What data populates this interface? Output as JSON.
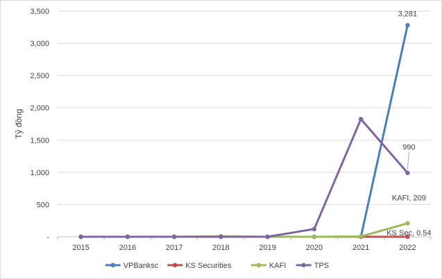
{
  "chart_data": {
    "type": "line",
    "x": [
      "2015",
      "2016",
      "2017",
      "2018",
      "2019",
      "2020",
      "2021",
      "2022"
    ],
    "ylabel": "Tỷ đồng",
    "ylim": [
      0,
      3500
    ],
    "y_ticks": [
      {
        "value": 0,
        "label": "-"
      },
      {
        "value": 500,
        "label": "500"
      },
      {
        "value": 1000,
        "label": "1,000"
      },
      {
        "value": 1500,
        "label": "1,500"
      },
      {
        "value": 2000,
        "label": "2,000"
      },
      {
        "value": 2500,
        "label": "2,500"
      },
      {
        "value": 3000,
        "label": "3,000"
      },
      {
        "value": 3500,
        "label": "3,500"
      }
    ],
    "grid": "horizontal",
    "legend_position": "bottom",
    "series": [
      {
        "name": "VPBanksc",
        "color": "#4a7ebb",
        "values": [
          0,
          0,
          0,
          0,
          0,
          0,
          0,
          3281
        ]
      },
      {
        "name": "KS Securities",
        "color": "#c0504d",
        "values": [
          0,
          0,
          0,
          0,
          0,
          0,
          0,
          0.54
        ]
      },
      {
        "name": "KAFI",
        "color": "#9bbb59",
        "values": [
          0,
          0,
          0,
          8,
          0,
          0,
          5,
          209
        ]
      },
      {
        "name": "TPS",
        "color": "#8064a2",
        "values": [
          0,
          0,
          0,
          0,
          0,
          120,
          1825,
          990
        ]
      }
    ],
    "annotations": [
      {
        "series": "VPBanksc",
        "index": 7,
        "text": "3,281"
      },
      {
        "series": "TPS",
        "index": 7,
        "text": "990"
      },
      {
        "series": "KAFI",
        "index": 7,
        "text": "KAFI,  209"
      },
      {
        "series": "KS Securities",
        "index": 7,
        "text": "KS Sec,  0.54"
      }
    ]
  }
}
